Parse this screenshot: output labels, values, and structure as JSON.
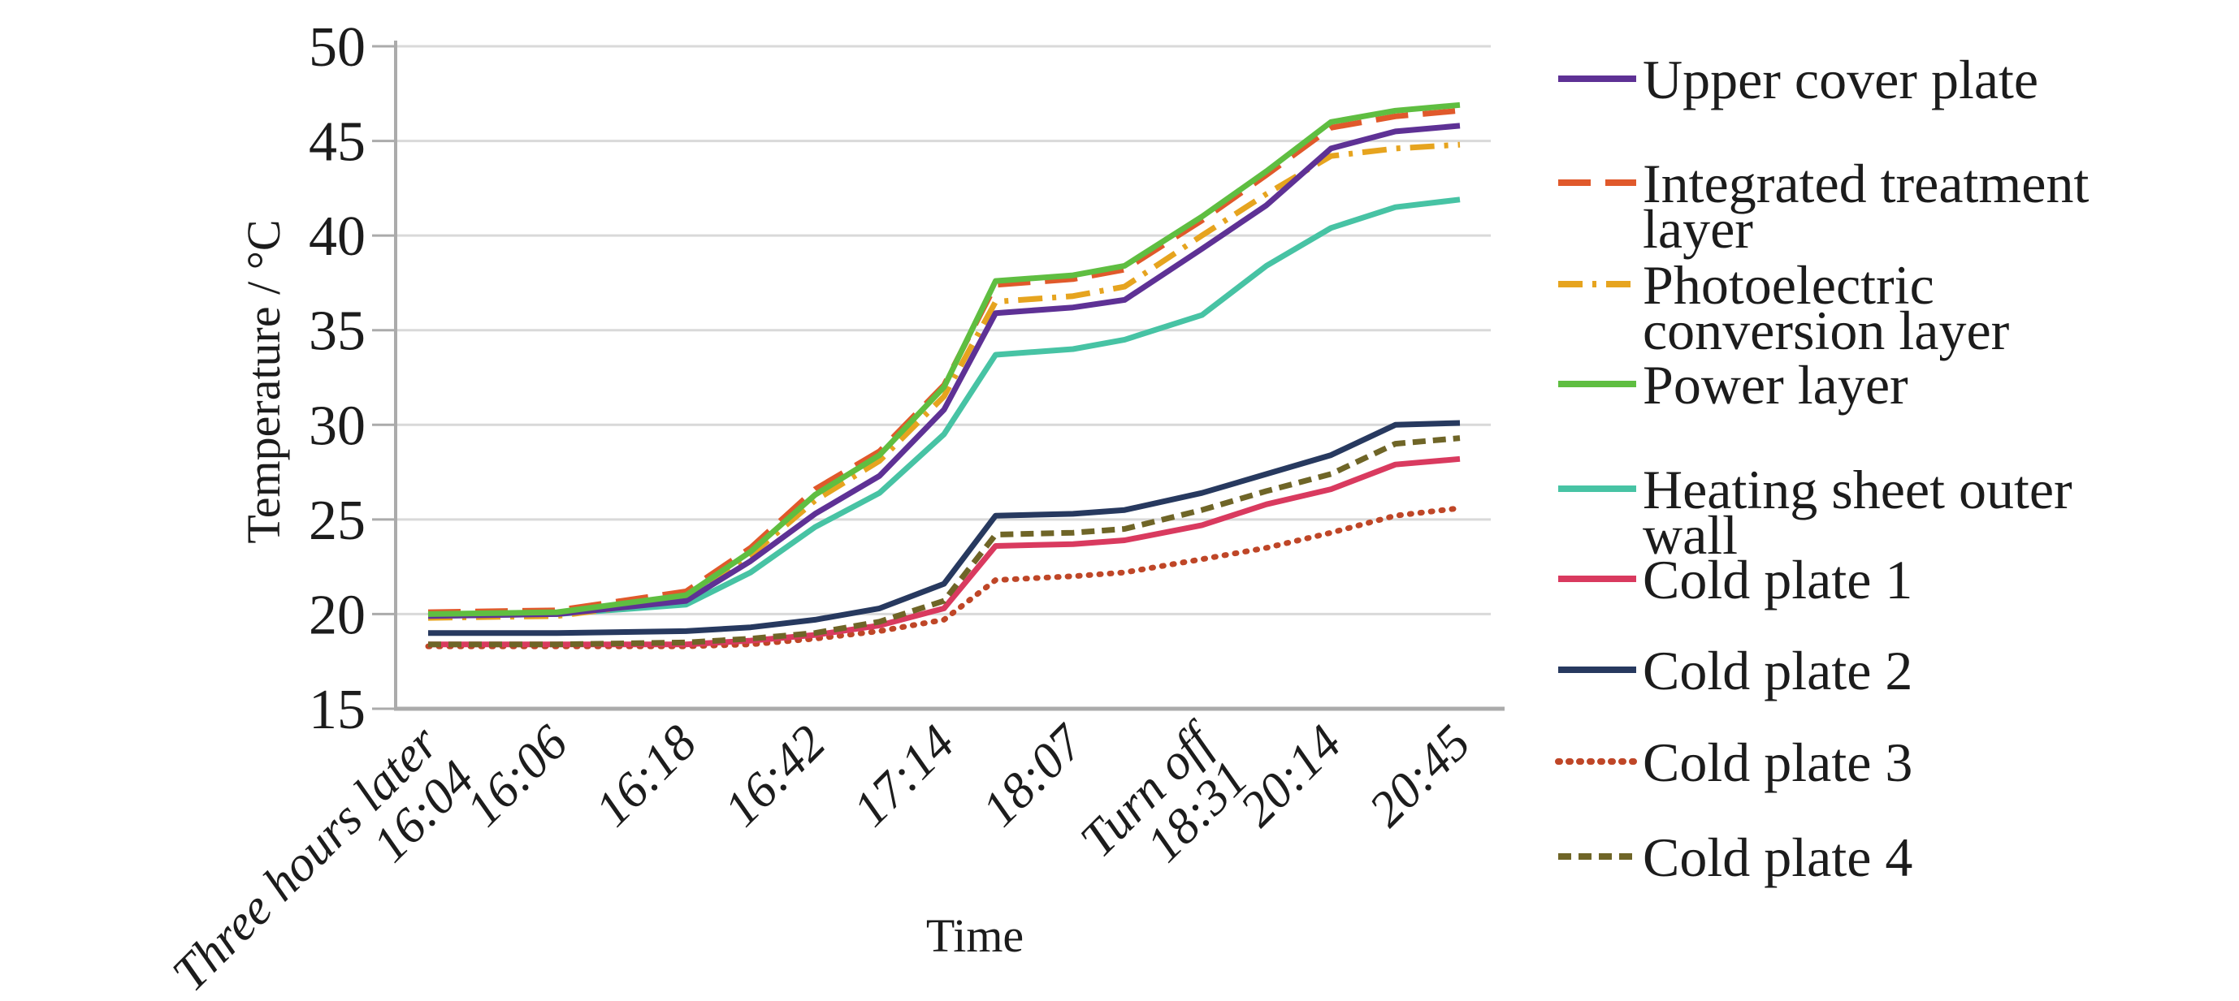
{
  "figure": {
    "background": "#ffffff",
    "text_color": "#1c1c1c",
    "grid_color": "#d9d9d9",
    "axis_color": "#ababab"
  },
  "chart_data": {
    "type": "line",
    "title": "",
    "xlabel": "Time",
    "ylabel": "Temperature / °C",
    "ylim": [
      15,
      50
    ],
    "y_ticks": [
      15,
      20,
      25,
      30,
      35,
      40,
      45,
      50
    ],
    "grid": true,
    "legend_position": "right",
    "categories": [
      "Three hours later 16:04",
      "16:06",
      "16:18",
      "16:42",
      "17:14",
      "18:07",
      "Turn off 18:31",
      "20:14",
      "20:45"
    ],
    "category_label_lines": [
      [
        "Three hours later",
        "16:04"
      ],
      [
        "16:06"
      ],
      [
        "16:18"
      ],
      [
        "16:42"
      ],
      [
        "17:14"
      ],
      [
        "18:07"
      ],
      [
        "Turn off",
        "18:31"
      ],
      [
        "20:14"
      ],
      [
        "20:45"
      ]
    ],
    "shape_u": [
      0,
      1,
      2,
      2.5,
      3,
      3.5,
      4,
      4.4,
      5,
      5.4,
      6,
      6.5,
      7,
      7.5,
      8
    ],
    "series": [
      {
        "name": "Upper cover plate",
        "legend_lines": [
          "Upper cover plate"
        ],
        "color": "#5e3195",
        "style": "solid",
        "values": [
          19.9,
          20.0,
          20.7,
          25.3,
          30.8,
          36.2,
          39.3,
          44.6,
          45.8
        ],
        "shape_t": [
          19.9,
          20.0,
          20.7,
          22.8,
          25.3,
          27.3,
          30.8,
          35.9,
          36.2,
          36.6,
          39.3,
          41.6,
          44.6,
          45.5,
          45.8
        ]
      },
      {
        "name": "Integrated treatment layer",
        "legend_lines": [
          "Integrated treatment",
          "layer"
        ],
        "color": "#e0592b",
        "style": "dash",
        "values": [
          20.1,
          20.2,
          21.2,
          26.6,
          32.1,
          37.7,
          40.8,
          45.7,
          46.6
        ],
        "shape_t": [
          20.1,
          20.2,
          21.2,
          23.5,
          26.6,
          28.6,
          32.1,
          37.4,
          37.7,
          38.2,
          40.8,
          43.2,
          45.7,
          46.3,
          46.6
        ]
      },
      {
        "name": "Photoelectric conversion layer",
        "legend_lines": [
          "Photoelectric",
          "conversion layer"
        ],
        "color": "#e6a41f",
        "style": "dashdot",
        "values": [
          19.8,
          19.9,
          20.8,
          26.0,
          31.5,
          36.8,
          40.0,
          44.2,
          44.8
        ],
        "shape_t": [
          19.8,
          19.9,
          20.8,
          23.1,
          26.0,
          28.1,
          31.5,
          36.5,
          36.8,
          37.3,
          40.0,
          42.2,
          44.2,
          44.6,
          44.8
        ]
      },
      {
        "name": "Power layer",
        "legend_lines": [
          "Power layer"
        ],
        "color": "#5fbe41",
        "style": "solid",
        "values": [
          20.0,
          20.1,
          21.0,
          26.3,
          32.0,
          37.9,
          41.0,
          46.0,
          46.9
        ],
        "shape_t": [
          20.0,
          20.1,
          21.0,
          23.3,
          26.3,
          28.4,
          32.0,
          37.6,
          37.9,
          38.4,
          41.0,
          43.4,
          46.0,
          46.6,
          46.9
        ]
      },
      {
        "name": "Heating sheet outer wall",
        "legend_lines": [
          "Heating sheet outer",
          "wall"
        ],
        "color": "#47c3a4",
        "style": "solid",
        "values": [
          19.9,
          20.0,
          20.5,
          24.6,
          29.5,
          34.0,
          35.8,
          40.4,
          41.9
        ],
        "shape_t": [
          19.9,
          20.0,
          20.5,
          22.2,
          24.6,
          26.4,
          29.5,
          33.7,
          34.0,
          34.5,
          35.8,
          38.4,
          40.4,
          41.5,
          41.9
        ]
      },
      {
        "name": "Cold plate 1",
        "legend_lines": [
          "Cold plate 1"
        ],
        "color": "#d93a5f",
        "style": "solid",
        "values": [
          18.4,
          18.4,
          18.4,
          18.9,
          20.3,
          23.7,
          24.7,
          26.6,
          28.2
        ],
        "shape_t": [
          18.4,
          18.4,
          18.4,
          18.6,
          18.9,
          19.4,
          20.3,
          23.6,
          23.7,
          23.9,
          24.7,
          25.8,
          26.6,
          27.9,
          28.2
        ]
      },
      {
        "name": "Cold plate 2",
        "legend_lines": [
          "Cold plate 2"
        ],
        "color": "#27395f",
        "style": "solid",
        "values": [
          19.0,
          19.0,
          19.1,
          19.7,
          21.6,
          25.3,
          26.4,
          28.4,
          30.1
        ],
        "shape_t": [
          19.0,
          19.0,
          19.1,
          19.3,
          19.7,
          20.3,
          21.6,
          25.2,
          25.3,
          25.5,
          26.4,
          27.4,
          28.4,
          30.0,
          30.1
        ]
      },
      {
        "name": "Cold plate 3",
        "legend_lines": [
          "Cold plate 3"
        ],
        "color": "#bf4627",
        "style": "dot",
        "values": [
          18.3,
          18.3,
          18.3,
          18.7,
          19.7,
          22.0,
          22.9,
          24.3,
          25.6
        ],
        "shape_t": [
          18.3,
          18.3,
          18.3,
          18.4,
          18.7,
          19.1,
          19.7,
          21.8,
          22.0,
          22.2,
          22.9,
          23.5,
          24.3,
          25.2,
          25.6
        ]
      },
      {
        "name": "Cold plate 4",
        "legend_lines": [
          "Cold plate 4"
        ],
        "color": "#6f6527",
        "style": "dash-small",
        "values": [
          18.4,
          18.4,
          18.5,
          19.0,
          20.7,
          24.3,
          25.5,
          27.4,
          29.3
        ],
        "shape_t": [
          18.4,
          18.4,
          18.5,
          18.7,
          19.0,
          19.6,
          20.7,
          24.2,
          24.3,
          24.5,
          25.5,
          26.5,
          27.4,
          29.0,
          29.3
        ]
      }
    ],
    "draw_order": [
      "Cold plate 3",
      "Cold plate 1",
      "Cold plate 4",
      "Cold plate 2",
      "Heating sheet outer wall",
      "Photoelectric conversion layer",
      "Upper cover plate",
      "Integrated treatment layer",
      "Power layer"
    ]
  },
  "legend": {
    "swatch_y": [
      97,
      225,
      350,
      473,
      602,
      713,
      825,
      938,
      1055
    ],
    "order": [
      "Upper cover plate",
      "Integrated treatment layer",
      "Photoelectric conversion layer",
      "Power layer",
      "Heating sheet outer wall",
      "Cold plate 1",
      "Cold plate 2",
      "Cold plate 3",
      "Cold plate 4"
    ]
  }
}
